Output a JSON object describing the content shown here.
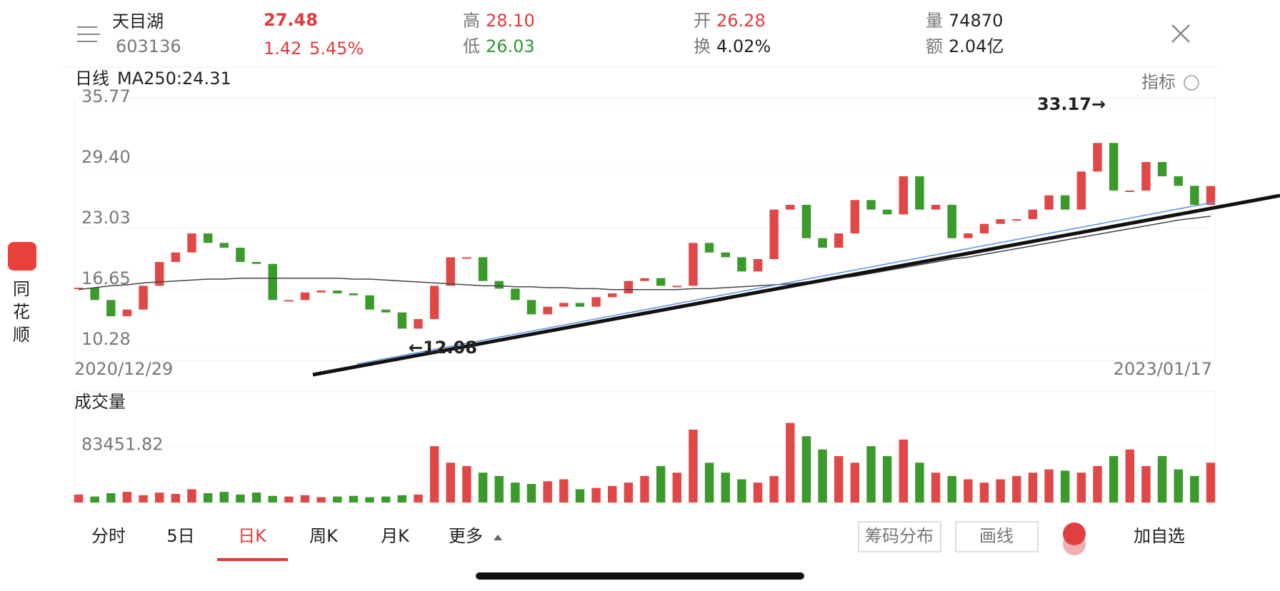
{
  "header": {
    "name": "天目湖",
    "code": "603136",
    "price": "27.48",
    "change": "1.42",
    "change_pct": "5.45%",
    "high_label": "高",
    "high": "28.10",
    "low_label": "低",
    "low": "26.03",
    "open_label": "开",
    "open": "26.28",
    "turnover_label": "换",
    "turnover": "4.02%",
    "volume_label": "量",
    "volume": "74870",
    "amount_label": "额",
    "amount": "2.04亿"
  },
  "sidebar": {
    "chars": [
      "同",
      "花",
      "顺"
    ]
  },
  "chart_data": {
    "type": "candlestick",
    "title": "日线",
    "ma_label": "MA250:24.31",
    "indicator": "指标",
    "x_start": "2020/12/29",
    "x_end": "2023/01/17",
    "ylim": [
      10.28,
      35.77
    ],
    "yticks": [
      35.77,
      {
        "value": 29.4,
        "label": "29.40"
      },
      23.03,
      16.65,
      10.28
    ],
    "grid": true,
    "annotations": [
      "33.17→",
      "←12.08"
    ],
    "close": [
      16.8,
      15.5,
      13.8,
      14.5,
      17,
      19.5,
      20.5,
      22.5,
      21.5,
      21,
      19.5,
      19.3,
      15.5,
      15.5,
      16.3,
      16.5,
      16.2,
      16,
      14.5,
      14.2,
      12.5,
      13.5,
      17,
      20,
      20,
      17.5,
      16.7,
      15.5,
      14,
      14.8,
      15.2,
      14.8,
      15.8,
      16.2,
      17.5,
      17.8,
      17,
      17,
      21.5,
      20.5,
      20,
      18.5,
      19.8,
      25,
      25.5,
      22,
      21,
      22.5,
      26,
      25,
      24.5,
      28.5,
      25,
      25.5,
      22,
      22.5,
      23.5,
      24,
      24,
      25,
      26.5,
      25,
      29,
      32,
      27,
      27,
      30,
      28.5,
      27.5,
      25.5,
      27.48
    ],
    "ma250": [
      16.6,
      16.8,
      17.0,
      17.1,
      17.3,
      17.4,
      17.5,
      17.6,
      17.7,
      17.7,
      17.8,
      17.8,
      17.8,
      17.8,
      17.8,
      17.8,
      17.8,
      17.7,
      17.7,
      17.6,
      17.5,
      17.4,
      17.3,
      17.2,
      17.1,
      17.0,
      17.0,
      16.9,
      16.9,
      16.8,
      16.8,
      16.7,
      16.7,
      16.6,
      16.6,
      16.6,
      16.6,
      16.6,
      16.7,
      16.7,
      16.8,
      16.9,
      17.0,
      17.1,
      17.2,
      17.4,
      17.6,
      17.8,
      18.0,
      18.3,
      18.6,
      18.9,
      19.2,
      19.5,
      19.8,
      20.0,
      20.3,
      20.6,
      20.9,
      21.2,
      21.5,
      21.8,
      22.1,
      22.4,
      22.7,
      23.0,
      23.3,
      23.6,
      23.9,
      24.1,
      24.31
    ],
    "up_color": "#e04848",
    "down_color": "#3a9a2a"
  },
  "volume_chart": {
    "title": "成交量",
    "ylim": [
      0,
      166903.64
    ],
    "yticks": [
      83451.82
    ],
    "values": [
      12000,
      9000,
      14000,
      16000,
      11000,
      15000,
      13000,
      20000,
      14000,
      16000,
      12000,
      15000,
      10000,
      9000,
      11000,
      8000,
      9000,
      10000,
      8000,
      9000,
      11000,
      12000,
      85000,
      60000,
      55000,
      45000,
      40000,
      30000,
      28000,
      32000,
      35000,
      20000,
      22000,
      25000,
      30000,
      40000,
      55000,
      45000,
      110000,
      60000,
      45000,
      35000,
      30000,
      40000,
      120000,
      100000,
      80000,
      70000,
      60000,
      85000,
      70000,
      95000,
      60000,
      45000,
      40000,
      35000,
      30000,
      35000,
      40000,
      45000,
      50000,
      48000,
      45000,
      55000,
      70000,
      80000,
      55000,
      70000,
      50000,
      40000,
      60000
    ]
  },
  "tabs": [
    "分时",
    "5日",
    "日K",
    "周K",
    "月K",
    "更多"
  ],
  "buttons": [
    "筹码分布",
    "画线",
    "加自选"
  ]
}
